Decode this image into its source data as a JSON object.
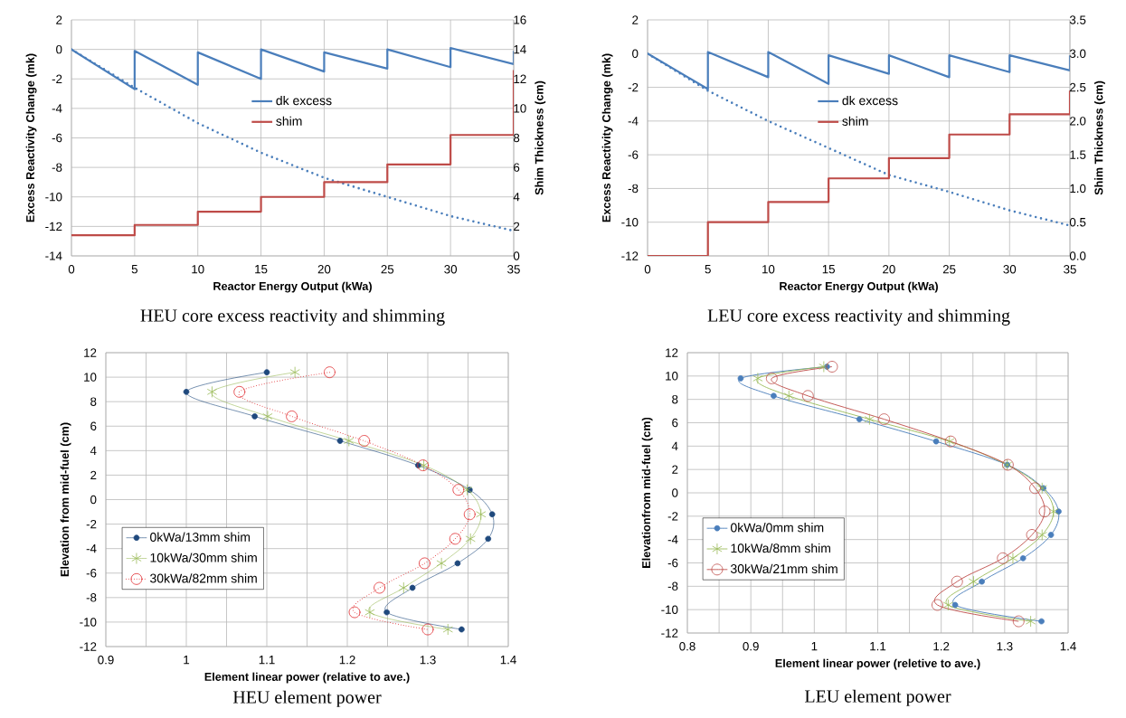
{
  "chart_data": [
    {
      "type": "line",
      "title": "HEU core excess reactivity and shimming",
      "xlabel": "Reactor Energy Output (kWa)",
      "ylabel": "Excess Reactivity Change (mk)",
      "y2label": "Shim Thickness (cm)",
      "xlim": [
        0,
        35
      ],
      "xticks": [
        0,
        5,
        10,
        15,
        20,
        25,
        30,
        35
      ],
      "ylim": [
        -14,
        2
      ],
      "yticks": [
        -14,
        -12,
        -10,
        -8,
        -6,
        -4,
        -2,
        0,
        2
      ],
      "y2lim": [
        0,
        16
      ],
      "y2ticks": [
        0,
        2,
        4,
        6,
        8,
        10,
        12,
        14,
        16
      ],
      "grid": true,
      "legend": "top",
      "series": [
        {
          "name": "dk excess",
          "color": "#4a7ebb",
          "x": [
            0,
            5,
            5,
            10,
            10,
            15,
            15,
            20,
            20,
            25,
            25,
            30,
            30,
            35,
            35
          ],
          "values": [
            0,
            -2.7,
            -0.1,
            -2.4,
            -0.2,
            -2.0,
            0,
            -1.5,
            -0.2,
            -1.3,
            0,
            -1.2,
            0.1,
            -1.0,
            -0.1
          ]
        },
        {
          "color": "#4a7ebb",
          "line_style": "dotted",
          "x": [
            0,
            5,
            10,
            15,
            20,
            25,
            30,
            35
          ],
          "values": [
            0,
            -2.6,
            -5.0,
            -7.0,
            -8.7,
            -10.0,
            -11.3,
            -12.3
          ]
        },
        {
          "name": "shim",
          "type": "step",
          "axis": "y2",
          "color": "#be4b48",
          "x": [
            0,
            5,
            10,
            15,
            20,
            25,
            30,
            35
          ],
          "values": [
            1.4,
            2.1,
            3.0,
            4.0,
            5.0,
            6.2,
            8.2,
            12.6
          ]
        }
      ]
    },
    {
      "type": "line",
      "title": "LEU core excess reactivity and shimming",
      "xlabel": "Reactor Energy Output (kWa)",
      "ylabel": "Excess Reactivity Change (mk)",
      "y2label": "Shim Thickness (cm)",
      "xlim": [
        0,
        35
      ],
      "xticks": [
        0,
        5,
        10,
        15,
        20,
        25,
        30,
        35
      ],
      "ylim": [
        -12,
        2
      ],
      "yticks": [
        -12,
        -10,
        -8,
        -6,
        -4,
        -2,
        0,
        2
      ],
      "y2lim": [
        0,
        3.5
      ],
      "y2ticks": [
        {
          "value": 0,
          "label": "0.0"
        },
        {
          "value": 0.5,
          "label": "0.5"
        },
        {
          "value": 1,
          "label": "1.0"
        },
        {
          "value": 1.5,
          "label": "1.5"
        },
        {
          "value": 2,
          "label": "2.0"
        },
        {
          "value": 2.5,
          "label": "2.5"
        },
        {
          "value": 3,
          "label": "3.0"
        },
        {
          "value": 3.5,
          "label": "3.5"
        }
      ],
      "grid": true,
      "legend": "top",
      "series": [
        {
          "name": "dk excess",
          "color": "#4a7ebb",
          "x": [
            0,
            5,
            5,
            10,
            10,
            15,
            15,
            20,
            20,
            25,
            25,
            30,
            30,
            35,
            35
          ],
          "values": [
            0,
            -2.1,
            0.1,
            -1.4,
            0.1,
            -1.8,
            -0.1,
            -1.2,
            -0.1,
            -1.4,
            -0.1,
            -1.1,
            -0.1,
            -1.0,
            -0.1
          ]
        },
        {
          "color": "#4a7ebb",
          "line_style": "dotted",
          "x": [
            0,
            5,
            10,
            15,
            20,
            25,
            30,
            35
          ],
          "values": [
            0,
            -2.2,
            -4.0,
            -5.6,
            -7.2,
            -8.2,
            -9.3,
            -10.2
          ]
        },
        {
          "name": "shim",
          "type": "step",
          "axis": "y2",
          "color": "#be4b48",
          "x": [
            0,
            5,
            10,
            15,
            20,
            25,
            30,
            35
          ],
          "values": [
            0,
            0.5,
            0.8,
            1.15,
            1.45,
            1.8,
            2.1,
            2.45
          ]
        }
      ]
    },
    {
      "type": "line",
      "title": "HEU element power",
      "xlabel": "Element linear power (relative to ave.)",
      "ylabel": "Elevation from mid-fuel (cm)",
      "xlim": [
        0.9,
        1.4
      ],
      "xticks": [
        0.9,
        {
          "value": 0.95,
          "label": null
        },
        1,
        {
          "value": 1.05,
          "label": null
        },
        1.1,
        {
          "value": 1.15,
          "label": null
        },
        1.2,
        {
          "value": 1.25,
          "label": null
        },
        1.3,
        {
          "value": 1.35,
          "label": null
        },
        1.4
      ],
      "ylim": [
        -12,
        12
      ],
      "yticks": [
        -12,
        -10,
        -8,
        -6,
        -4,
        -2,
        0,
        2,
        4,
        6,
        8,
        10,
        12
      ],
      "grid": true,
      "legend": "left",
      "series": [
        {
          "name": "0kWa/13mm shim",
          "color": "#1f497d",
          "marker": "circle",
          "x": [
            1.1,
            1.0,
            1.085,
            1.191,
            1.288,
            1.352,
            1.38,
            1.375,
            1.337,
            1.281,
            1.249,
            1.342
          ],
          "values": [
            10.4,
            8.8,
            6.8,
            4.8,
            2.8,
            0.8,
            -1.2,
            -3.2,
            -5.2,
            -7.2,
            -9.2,
            -10.6
          ]
        },
        {
          "name": "10kWa/30mm shim",
          "color": "#9bbb59",
          "marker": "cross",
          "x": [
            1.135,
            1.032,
            1.101,
            1.202,
            1.295,
            1.349,
            1.366,
            1.353,
            1.317,
            1.27,
            1.228,
            1.325
          ],
          "values": [
            10.4,
            8.8,
            6.8,
            4.8,
            2.8,
            0.8,
            -1.2,
            -3.2,
            -5.2,
            -7.2,
            -9.2,
            -10.6
          ]
        },
        {
          "name": "30kWa/82mm shim",
          "color": "#e0282c",
          "marker": "circle",
          "line_style": "dotted",
          "x": [
            1.178,
            1.066,
            1.131,
            1.221,
            1.294,
            1.338,
            1.352,
            1.334,
            1.296,
            1.24,
            1.209,
            1.3
          ],
          "values": [
            10.4,
            8.8,
            6.8,
            4.8,
            2.8,
            0.8,
            -1.2,
            -3.2,
            -5.2,
            -7.2,
            -9.2,
            -10.6
          ]
        }
      ]
    },
    {
      "type": "line",
      "title": "LEU element power",
      "xlabel": "Element linear power (reletive to ave.)",
      "ylabel": "Elevationfrom mid-fuel (cm)",
      "xlim": [
        0.8,
        1.4
      ],
      "xticks": [
        0.8,
        {
          "value": 0.85,
          "label": null
        },
        0.9,
        {
          "value": 0.95,
          "label": null
        },
        1,
        {
          "value": 1.05,
          "label": null
        },
        1.1,
        {
          "value": 1.15,
          "label": null
        },
        1.2,
        {
          "value": 1.25,
          "label": null
        },
        1.3,
        {
          "value": 1.35,
          "label": null
        },
        1.4
      ],
      "ylim": [
        -12,
        12
      ],
      "yticks": [
        -12,
        -10,
        -8,
        -6,
        -4,
        -2,
        0,
        2,
        4,
        6,
        8,
        10,
        12
      ],
      "grid": true,
      "legend": "left",
      "series": [
        {
          "name": "0kWa/0mm shim",
          "color": "#4a7ebb",
          "marker": "circle",
          "x": [
            1.02,
            0.884,
            0.936,
            1.071,
            1.192,
            1.304,
            1.361,
            1.385,
            1.373,
            1.329,
            1.264,
            1.222,
            1.358
          ],
          "values": [
            10.8,
            9.8,
            8.3,
            6.3,
            4.4,
            2.4,
            0.4,
            -1.6,
            -3.6,
            -5.6,
            -7.6,
            -9.6,
            -11.0
          ]
        },
        {
          "name": "10kWa/8mm shim",
          "color": "#9bbb59",
          "marker": "cross",
          "x": [
            1.015,
            0.911,
            0.96,
            1.087,
            1.213,
            1.304,
            1.359,
            1.377,
            1.359,
            1.313,
            1.251,
            1.211,
            1.341
          ],
          "values": [
            10.8,
            9.8,
            8.3,
            6.3,
            4.4,
            2.4,
            0.4,
            -1.6,
            -3.6,
            -5.6,
            -7.6,
            -9.6,
            -11.0
          ]
        },
        {
          "name": "30kWa/21mm shim",
          "color": "#be4b48",
          "marker": "circle",
          "x": [
            1.028,
            0.933,
            0.99,
            1.11,
            1.215,
            1.305,
            1.348,
            1.363,
            1.343,
            1.297,
            1.225,
            1.194,
            1.322
          ],
          "values": [
            10.8,
            9.8,
            8.3,
            6.3,
            4.4,
            2.4,
            0.4,
            -1.6,
            -3.6,
            -5.6,
            -7.6,
            -9.6,
            -11.0
          ]
        }
      ]
    }
  ]
}
